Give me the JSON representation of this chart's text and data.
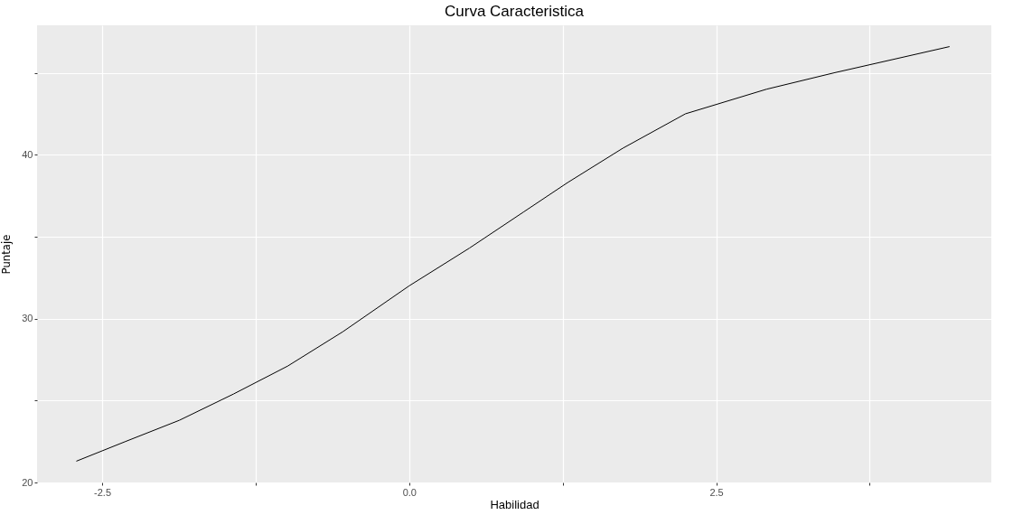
{
  "chart_data": {
    "type": "line",
    "title": "Curva Caracteristica",
    "xlabel": "Habilidad",
    "ylabel": "Puntaje",
    "x": [
      -2.71,
      -2.31,
      -1.87,
      -1.43,
      -0.99,
      -0.54,
      0,
      0.49,
      0.93,
      1.29,
      1.74,
      2.25,
      2.91,
      3.46,
      4.4
    ],
    "series": [
      {
        "color": "#000000",
        "values": [
          21.3,
          22.5,
          23.8,
          25.4,
          27.1,
          29.2,
          32.0,
          34.3,
          36.5,
          38.3,
          40.4,
          42.5,
          44.0,
          45.0,
          46.6
        ]
      }
    ],
    "xlim": [
      -3.03,
      4.74
    ],
    "ylim": [
      20,
      47.9
    ],
    "xticks": [
      {
        "value": -2.5,
        "label": "-2.5"
      },
      {
        "value": -1.25,
        "label": null
      },
      {
        "value": 0,
        "label": "0.0"
      },
      {
        "value": 1.25,
        "label": null
      },
      {
        "value": 2.5,
        "label": "2.5"
      },
      {
        "value": 3.75,
        "label": null
      }
    ],
    "yticks": [
      20,
      {
        "value": 25,
        "label": null
      },
      30,
      {
        "value": 35,
        "label": null
      },
      40,
      {
        "value": 45,
        "label": null
      }
    ],
    "grid": true,
    "legend": false,
    "marker": "none",
    "line_style": "solid"
  }
}
